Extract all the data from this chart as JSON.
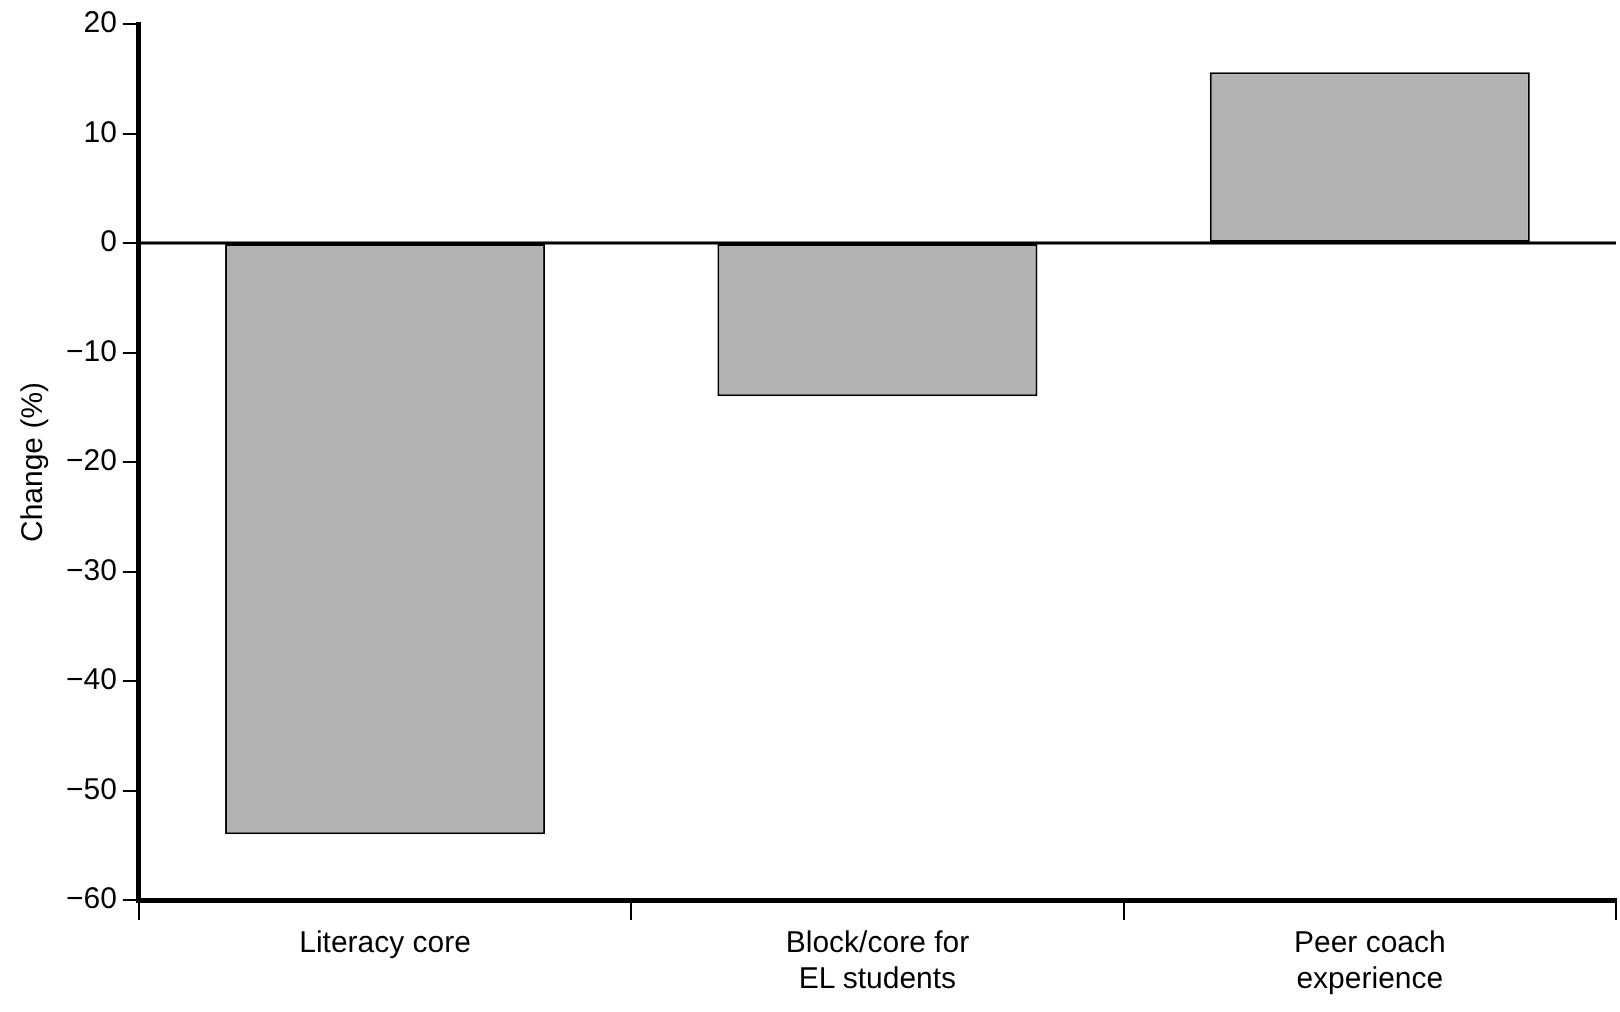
{
  "chart_data": {
    "type": "bar",
    "ylabel": "Change (%)",
    "categories": [
      "Literacy core",
      "Block/core for EL students",
      "Peer coach experience"
    ],
    "values": [
      -54,
      -14,
      15.6
    ],
    "color": "#b3b3b3",
    "ylim": [
      -60,
      20
    ],
    "yticks": [
      {
        "value": -60,
        "label": "−60"
      },
      {
        "value": -50,
        "label": "−50"
      },
      {
        "value": -40,
        "label": "−40"
      },
      {
        "value": -30,
        "label": "−30"
      },
      {
        "value": -20,
        "label": "−20"
      },
      {
        "value": -10,
        "label": "−10"
      },
      0,
      10,
      20
    ],
    "ref_lines": [
      {
        "axis": "y",
        "value": 0,
        "color": "#000000"
      }
    ],
    "grid": false,
    "legend": false
  }
}
